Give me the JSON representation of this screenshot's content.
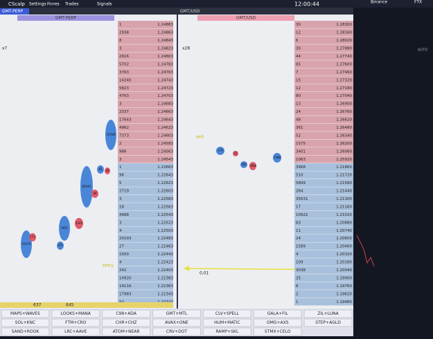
{
  "menu": {
    "app": "CScalp",
    "items": [
      "Settings",
      "Finres",
      "Trades",
      "Signals"
    ],
    "time": "12:00:44"
  },
  "tabs": [
    "GMT-PERP",
    "GMT/USD"
  ],
  "left": {
    "title": "GMT-PERP",
    "multiplier": "x7",
    "annotation": "entry",
    "footer": [
      "637",
      "645"
    ],
    "asks": [
      {
        "v": "1",
        "p": "1.24883"
      },
      {
        "v": "2938",
        "p": "1.24863"
      },
      {
        "v": "8",
        "p": "1.24843"
      },
      {
        "v": "3",
        "p": "1.24823"
      },
      {
        "v": "2916",
        "p": "1.24803"
      },
      {
        "v": "5702",
        "p": "1.24783"
      },
      {
        "v": "3763",
        "p": "1.24763"
      },
      {
        "v": "14240",
        "p": "1.24743"
      },
      {
        "v": "5823",
        "p": "1.24723"
      },
      {
        "v": "4763",
        "p": "1.24703"
      },
      {
        "v": "3",
        "p": "1.24683"
      },
      {
        "v": "2337",
        "p": "1.24663"
      },
      {
        "v": "17643",
        "p": "1.24643"
      },
      {
        "v": "4962",
        "p": "1.24623"
      },
      {
        "v": "7373",
        "p": "1.24603"
      },
      {
        "v": "2",
        "p": "1.24583"
      },
      {
        "v": "986",
        "p": "1.24563"
      },
      {
        "v": "3",
        "p": "1.24543"
      }
    ],
    "bids": [
      {
        "v": "1",
        "p": "1.22663"
      },
      {
        "v": "96",
        "p": "1.22643"
      },
      {
        "v": "5",
        "p": "1.22623"
      },
      {
        "v": "2719",
        "p": "1.22603"
      },
      {
        "v": "3",
        "p": "1.22583"
      },
      {
        "v": "18",
        "p": "1.22563"
      },
      {
        "v": "4988",
        "p": "1.22543"
      },
      {
        "v": "3",
        "p": "1.22523"
      },
      {
        "v": "4",
        "p": "1.22503"
      },
      {
        "v": "20193",
        "p": "1.22483"
      },
      {
        "v": "27",
        "p": "1.22463"
      },
      {
        "v": "1500",
        "p": "1.22443"
      },
      {
        "v": "4",
        "p": "1.22423"
      },
      {
        "v": "242",
        "p": "1.22403"
      },
      {
        "v": "14920",
        "p": "1.22383"
      },
      {
        "v": "19116",
        "p": "1.22363"
      },
      {
        "v": "17983",
        "p": "1.22343"
      },
      {
        "v": "52",
        "p": "1.22323"
      }
    ]
  },
  "right": {
    "title": "GMT/USD",
    "multiplier": "x28",
    "annotation": "exit",
    "step": "0,01",
    "asks": [
      {
        "v": "30",
        "p": "1.28300"
      },
      {
        "v": "12",
        "p": "1.28160"
      },
      {
        "v": "6",
        "p": "1.28020"
      },
      {
        "v": "30",
        "p": "1.27880"
      },
      {
        "v": "44",
        "p": "1.27740"
      },
      {
        "v": "65",
        "p": "1.27600"
      },
      {
        "v": "7",
        "p": "1.27460"
      },
      {
        "v": "15",
        "p": "1.27320"
      },
      {
        "v": "12",
        "p": "1.27180"
      },
      {
        "v": "80",
        "p": "1.27040"
      },
      {
        "v": "13",
        "p": "1.26900"
      },
      {
        "v": "24",
        "p": "1.26760"
      },
      {
        "v": "48",
        "p": "1.26620"
      },
      {
        "v": "361",
        "p": "1.26480"
      },
      {
        "v": "52",
        "p": "1.26340"
      },
      {
        "v": "1575",
        "p": "1.26200"
      },
      {
        "v": "3401",
        "p": "1.26060"
      },
      {
        "v": "1063",
        "p": "1.25920"
      }
    ],
    "bids": [
      {
        "v": "3968",
        "p": "1.21860"
      },
      {
        "v": "510",
        "p": "1.21720"
      },
      {
        "v": "5899",
        "p": "1.21580"
      },
      {
        "v": "264",
        "p": "1.21440"
      },
      {
        "v": "35631",
        "p": "1.21300"
      },
      {
        "v": "17",
        "p": "1.21160"
      },
      {
        "v": "10922",
        "p": "1.21020"
      },
      {
        "v": "83",
        "p": "1.20880"
      },
      {
        "v": "11",
        "p": "1.20740"
      },
      {
        "v": "24",
        "p": "1.20600"
      },
      {
        "v": "1589",
        "p": "1.20460"
      },
      {
        "v": "4",
        "p": "1.20320"
      },
      {
        "v": "109",
        "p": "1.20180"
      },
      {
        "v": "3038",
        "p": "1.20040"
      },
      {
        "v": "25",
        "p": "1.19900"
      },
      {
        "v": "8",
        "p": "1.19760"
      },
      {
        "v": "2",
        "p": "1.19620"
      },
      {
        "v": "1",
        "p": "1.19480"
      }
    ]
  },
  "bubbles": {
    "left": [
      {
        "label": "10789",
        "side": "buy"
      },
      {
        "label": "66345",
        "side": "buy"
      },
      {
        "label": "1831",
        "side": "buy"
      },
      {
        "label": "33374",
        "side": "buy"
      },
      {
        "label": "1545",
        "side": "sell"
      },
      {
        "label": "173",
        "side": "sell"
      },
      {
        "label": "370",
        "side": "buy"
      },
      {
        "label": "48",
        "side": "sell"
      },
      {
        "label": "62",
        "side": "buy"
      },
      {
        "label": "98",
        "side": "sell"
      }
    ],
    "right": [
      {
        "label": "179",
        "side": "buy"
      },
      {
        "label": "1388",
        "side": "buy"
      },
      {
        "label": "2888",
        "side": "sell"
      },
      {
        "label": "21",
        "side": "sell"
      },
      {
        "label": "360",
        "side": "buy"
      }
    ]
  },
  "exchanges": [
    "Binance",
    "FTX"
  ],
  "chart_axis": [
    "AUTO"
  ],
  "buttons": [
    [
      "MAPS+WAVES",
      "LOOKS+MANA",
      "C98+ADA",
      "GMT+MTL",
      "CLV+SPELL",
      "GALA+FIL",
      "ZIL+LUNA"
    ],
    [
      "SOL+KNC",
      "FTM+CRO",
      "CHR+CHZ",
      "AVAX+ONE",
      "HUM+MATIC",
      "OMG+AXS",
      "STEP+AGLD"
    ],
    [
      "SAND+ROOK",
      "LRC+AAVE",
      "ATOM+NEAR",
      "CRV+DOT",
      "RAMP+SKL",
      "STMX+CELO"
    ]
  ]
}
